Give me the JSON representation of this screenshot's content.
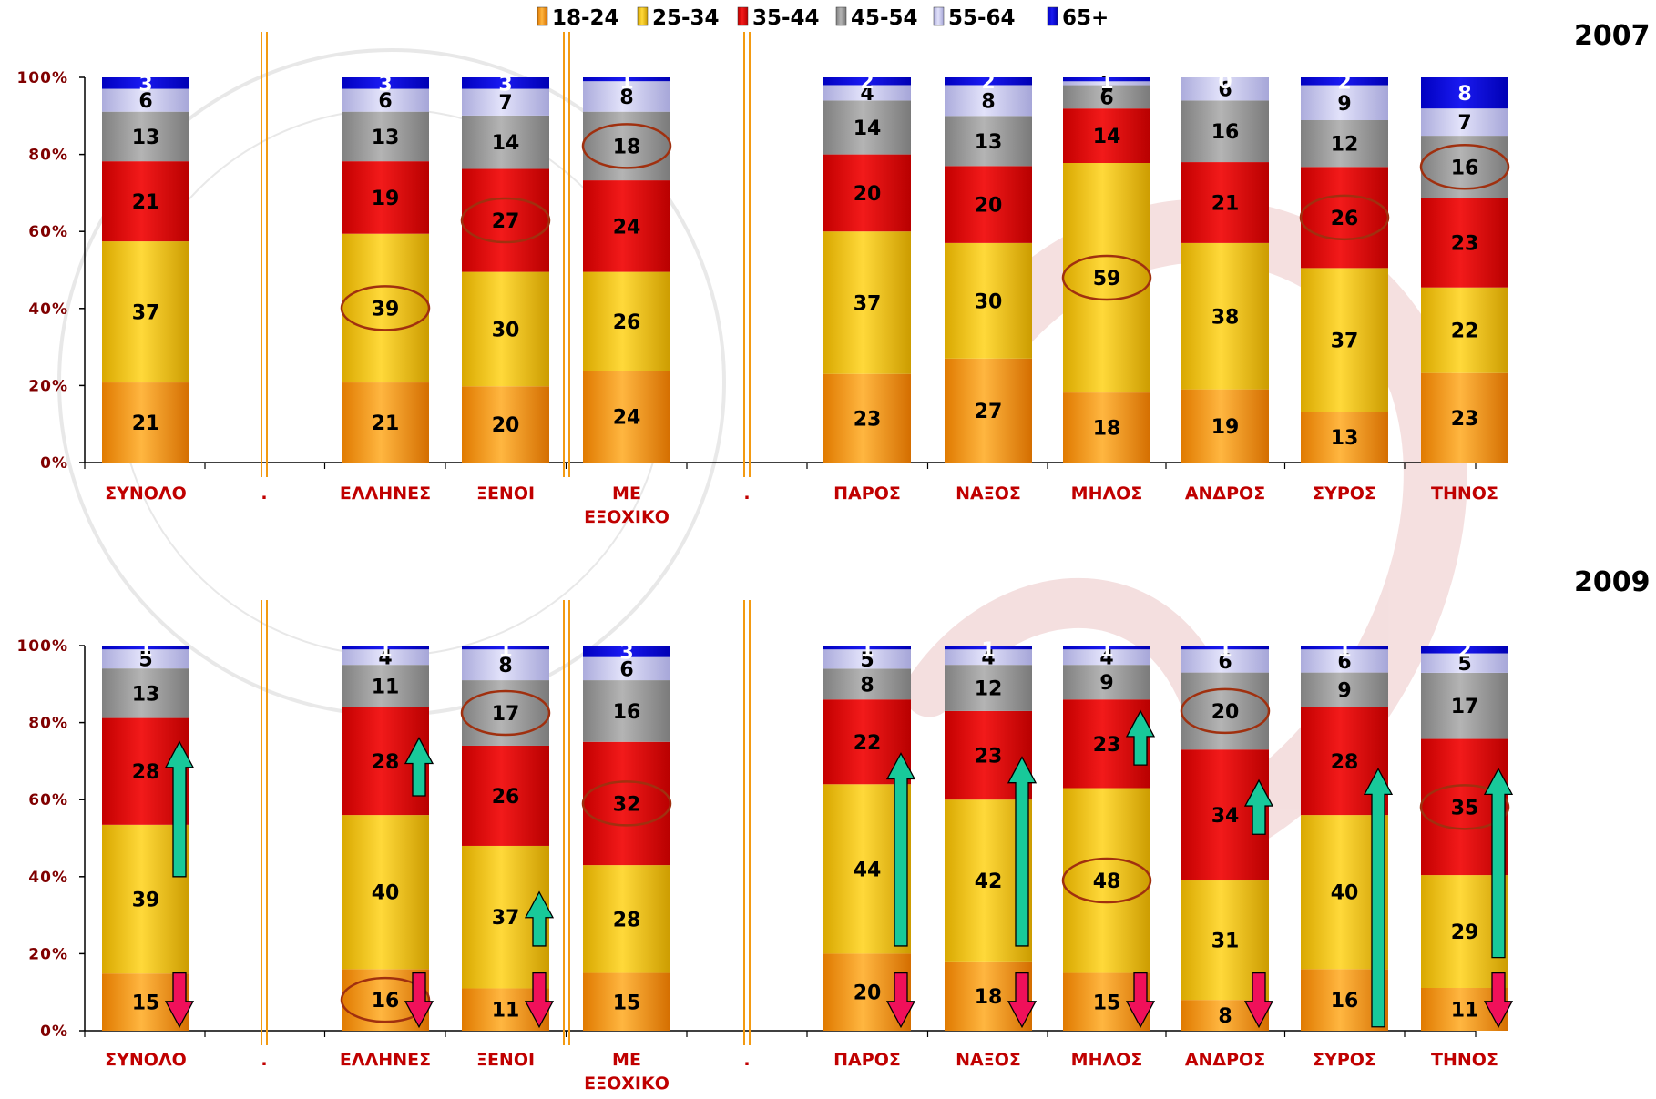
{
  "legend": [
    {
      "label": "18-24",
      "color": "#F39A12"
    },
    {
      "label": "25-34",
      "color": "#F2C200"
    },
    {
      "label": "35-44",
      "color": "#E00000"
    },
    {
      "label": "45-54",
      "color": "#9A9A9A"
    },
    {
      "label": "55-64",
      "color": "#C8C8F0"
    },
    {
      "label": "65+",
      "color": "#0000D8"
    }
  ],
  "colors": {
    "label_dark": "#000000",
    "label_light": "#ffffff",
    "axis_label": "#800000",
    "category_label": "#C00000",
    "separator": "#F39A12",
    "circle": "#A0300F",
    "arrow_up": "#18C99A",
    "arrow_down": "#F0105A"
  },
  "chart_data": [
    {
      "type": "bar",
      "stacked": true,
      "title": "2007",
      "categories": [
        "ΣΥΝΟΛΟ",
        ".",
        "ΕΛΛΗΝΕΣ",
        "ΞΕΝΟΙ",
        "ΜΕ ΕΞΟΧΙΚΟ",
        ".",
        "ΠΑΡΟΣ",
        "ΝΑΞΟΣ",
        "ΜΗΛΟΣ",
        "ΑΝΔΡΟΣ",
        "ΣΥΡΟΣ",
        "ΤΗΝΟΣ"
      ],
      "ylim": [
        0,
        100
      ],
      "yticks": [
        "0%",
        "20%",
        "40%",
        "60%",
        "80%",
        "100%"
      ],
      "series": [
        {
          "name": "18-24",
          "values": [
            21,
            null,
            21,
            20,
            24,
            null,
            23,
            27,
            18,
            19,
            13,
            23
          ]
        },
        {
          "name": "25-34",
          "values": [
            37,
            null,
            39,
            30,
            26,
            null,
            37,
            30,
            59,
            38,
            37,
            22
          ]
        },
        {
          "name": "35-44",
          "values": [
            21,
            null,
            19,
            27,
            24,
            null,
            20,
            20,
            14,
            21,
            26,
            23
          ]
        },
        {
          "name": "45-54",
          "values": [
            13,
            null,
            13,
            14,
            18,
            null,
            14,
            13,
            6,
            16,
            12,
            16
          ]
        },
        {
          "name": "55-64",
          "values": [
            6,
            null,
            6,
            7,
            8,
            null,
            4,
            8,
            1,
            6,
            9,
            7
          ]
        },
        {
          "name": "65+",
          "values": [
            3,
            null,
            3,
            3,
            1,
            null,
            2,
            2,
            1,
            0,
            2,
            8
          ]
        }
      ],
      "circled": [
        {
          "category": "ΕΛΛΗΝΕΣ",
          "series": "25-34"
        },
        {
          "category": "ΞΕΝΟΙ",
          "series": "35-44"
        },
        {
          "category": "ΜΕ ΕΞΟΧΙΚΟ",
          "series": "45-54"
        },
        {
          "category": "ΜΗΛΟΣ",
          "series": "25-34"
        },
        {
          "category": "ΣΥΡΟΣ",
          "series": "35-44"
        },
        {
          "category": "ΤΗΝΟΣ",
          "series": "45-54"
        }
      ],
      "arrows": []
    },
    {
      "type": "bar",
      "stacked": true,
      "title": "2009",
      "categories": [
        "ΣΥΝΟΛΟ",
        ".",
        "ΕΛΛΗΝΕΣ",
        "ΞΕΝΟΙ",
        "ΜΕ ΕΞΟΧΙΚΟ",
        ".",
        "ΠΑΡΟΣ",
        "ΝΑΞΟΣ",
        "ΜΗΛΟΣ",
        "ΑΝΔΡΟΣ",
        "ΣΥΡΟΣ",
        "ΤΗΝΟΣ"
      ],
      "ylim": [
        0,
        100
      ],
      "yticks": [
        "0%",
        "20%",
        "40%",
        "60%",
        "80%",
        "100%"
      ],
      "series": [
        {
          "name": "18-24",
          "values": [
            15,
            null,
            16,
            11,
            15,
            null,
            20,
            18,
            15,
            8,
            16,
            11
          ]
        },
        {
          "name": "25-34",
          "values": [
            39,
            null,
            40,
            37,
            28,
            null,
            44,
            42,
            48,
            31,
            40,
            29
          ]
        },
        {
          "name": "35-44",
          "values": [
            28,
            null,
            28,
            26,
            32,
            null,
            22,
            23,
            23,
            34,
            28,
            35
          ]
        },
        {
          "name": "45-54",
          "values": [
            13,
            null,
            11,
            17,
            16,
            null,
            8,
            12,
            9,
            20,
            9,
            17
          ]
        },
        {
          "name": "55-64",
          "values": [
            5,
            null,
            4,
            8,
            6,
            null,
            5,
            4,
            4,
            6,
            6,
            5
          ]
        },
        {
          "name": "65+",
          "values": [
            1,
            null,
            1,
            1,
            3,
            null,
            1,
            1,
            1,
            1,
            1,
            2
          ]
        }
      ],
      "circled": [
        {
          "category": "ΕΛΛΗΝΕΣ",
          "series": "18-24"
        },
        {
          "category": "ΞΕΝΟΙ",
          "series": "45-54"
        },
        {
          "category": "ΜΕ ΕΞΟΧΙΚΟ",
          "series": "35-44"
        },
        {
          "category": "ΜΗΛΟΣ",
          "series": "25-34"
        },
        {
          "category": "ΑΝΔΡΟΣ",
          "series": "45-54"
        },
        {
          "category": "ΤΗΝΟΣ",
          "series": "35-44"
        }
      ],
      "arrows": [
        {
          "category": "ΣΥΝΟΛΟ",
          "dir": "up",
          "from": 40,
          "to": 75
        },
        {
          "category": "ΣΥΝΟΛΟ",
          "dir": "down",
          "from": 15,
          "to": 1
        },
        {
          "category": "ΕΛΛΗΝΕΣ",
          "dir": "up",
          "from": 61,
          "to": 76
        },
        {
          "category": "ΕΛΛΗΝΕΣ",
          "dir": "down",
          "from": 15,
          "to": 1
        },
        {
          "category": "ΞΕΝΟΙ",
          "dir": "up",
          "from": 22,
          "to": 36
        },
        {
          "category": "ΞΕΝΟΙ",
          "dir": "down",
          "from": 15,
          "to": 1
        },
        {
          "category": "ΠΑΡΟΣ",
          "dir": "up",
          "from": 22,
          "to": 72
        },
        {
          "category": "ΠΑΡΟΣ",
          "dir": "down",
          "from": 15,
          "to": 1
        },
        {
          "category": "ΝΑΞΟΣ",
          "dir": "up",
          "from": 22,
          "to": 71
        },
        {
          "category": "ΝΑΞΟΣ",
          "dir": "down",
          "from": 15,
          "to": 1
        },
        {
          "category": "ΜΗΛΟΣ",
          "dir": "up",
          "from": 69,
          "to": 83
        },
        {
          "category": "ΜΗΛΟΣ",
          "dir": "down",
          "from": 15,
          "to": 1
        },
        {
          "category": "ΑΝΔΡΟΣ",
          "dir": "up",
          "from": 51,
          "to": 65
        },
        {
          "category": "ΑΝΔΡΟΣ",
          "dir": "down",
          "from": 15,
          "to": 1
        },
        {
          "category": "ΣΥΡΟΣ",
          "dir": "up",
          "from": 1,
          "to": 68
        },
        {
          "category": "ΤΗΝΟΣ",
          "dir": "up",
          "from": 19,
          "to": 68
        },
        {
          "category": "ΤΗΝΟΣ",
          "dir": "down",
          "from": 15,
          "to": 1
        }
      ]
    }
  ]
}
